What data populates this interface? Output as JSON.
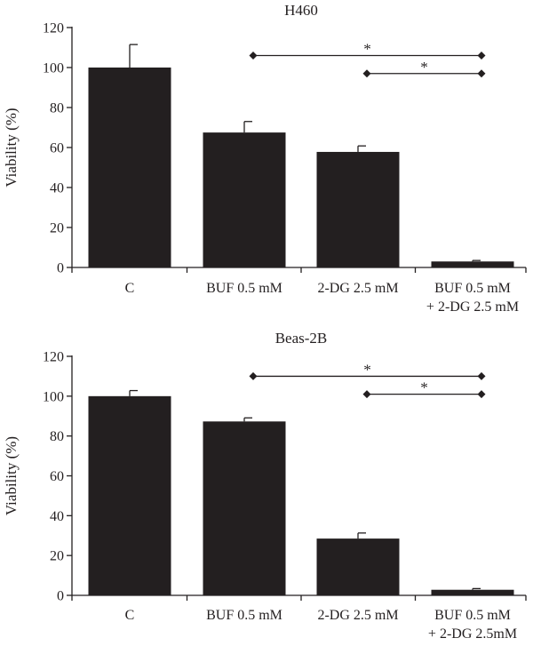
{
  "chart_data": [
    {
      "type": "bar",
      "title": "H460",
      "ylabel": "Viability (%)",
      "xlabel": "",
      "ylim": [
        0,
        120
      ],
      "yticks": [
        0,
        20,
        40,
        60,
        80,
        100,
        120
      ],
      "categories": [
        [
          "C"
        ],
        [
          "BUF 0.5 mM"
        ],
        [
          "2-DG 2.5 mM"
        ],
        [
          "BUF 0.5 mM",
          "+ 2-DG 2.5 mM"
        ]
      ],
      "values": [
        100,
        67.5,
        57.8,
        3
      ],
      "errors": [
        11.5,
        5.5,
        3,
        0.5
      ],
      "bar_color": "#231f20",
      "significance": [
        {
          "from": 1,
          "to": 3,
          "label": "*",
          "y": 106
        },
        {
          "from": 2,
          "to": 3,
          "label": "*",
          "y": 97
        }
      ]
    },
    {
      "type": "bar",
      "title": "Beas-2B",
      "ylabel": "Viability (%)",
      "xlabel": "",
      "ylim": [
        0,
        120
      ],
      "yticks": [
        0,
        20,
        40,
        60,
        80,
        100,
        120
      ],
      "categories": [
        [
          "C"
        ],
        [
          "BUF 0.5 mM"
        ],
        [
          "2-DG 2.5 mM"
        ],
        [
          "BUF 0.5 mM",
          "+ 2-DG 2.5mM"
        ]
      ],
      "values": [
        100,
        87.3,
        28.5,
        2.8
      ],
      "errors": [
        2.8,
        1.8,
        2.8,
        0.6
      ],
      "bar_color": "#231f20",
      "significance": [
        {
          "from": 1,
          "to": 3,
          "label": "*",
          "y": 110
        },
        {
          "from": 2,
          "to": 3,
          "label": "*",
          "y": 101
        }
      ]
    }
  ]
}
